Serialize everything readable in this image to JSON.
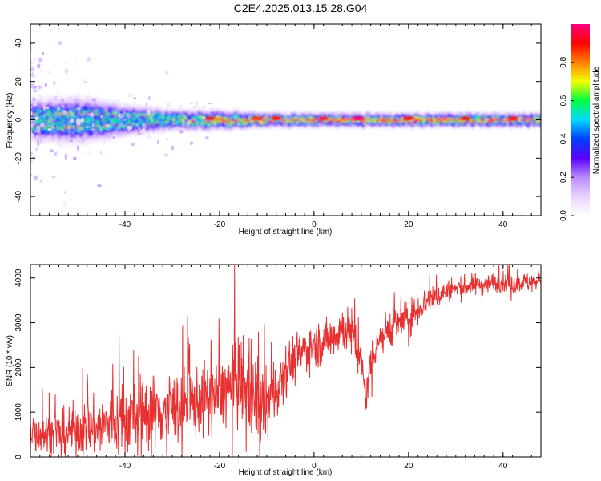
{
  "page": {
    "title": "C2E4.2025.013.15.28.G04"
  },
  "colors": {
    "snr_line": "#e83030",
    "frame": "#000000",
    "spectrogram_background": "#ffffff",
    "colormap": [
      "#ffffff",
      "#e9d2ff",
      "#b98cff",
      "#5a00ff",
      "#0040ff",
      "#00d8ff",
      "#00ff40",
      "#f0ff00",
      "#ff8000",
      "#ff0000",
      "#ff0080"
    ]
  },
  "chart_data": [
    {
      "type": "heatmap",
      "name": "spectrogram",
      "title": "",
      "xlabel": "Height of straight line (km)",
      "ylabel": "Frequency (Hz)",
      "xlim": [
        -60,
        48
      ],
      "ylim": [
        -50,
        50
      ],
      "x_ticks": [
        -40,
        -20,
        0,
        20,
        40
      ],
      "y_ticks": [
        -40,
        -20,
        0,
        20,
        40
      ],
      "grid": false,
      "colorbar": {
        "label": "Normalized spectral amplitude",
        "range": [
          0.0,
          1.0
        ],
        "ticks": [
          0.0,
          0.2,
          0.4,
          0.6,
          0.8
        ]
      },
      "band": {
        "center_frequency": 0,
        "description_x": [
          -58,
          -50,
          -40,
          -30,
          -20,
          -10,
          0,
          10,
          20,
          30,
          40,
          47
        ],
        "core_halfwidth_hz": [
          8,
          9,
          6,
          4,
          4,
          3,
          3,
          3,
          3,
          3,
          3,
          3
        ],
        "peak_amplitude": [
          0.5,
          0.45,
          0.45,
          0.55,
          0.75,
          0.85,
          0.9,
          1.0,
          0.9,
          0.85,
          0.85,
          0.85
        ]
      }
    },
    {
      "type": "line",
      "name": "snr",
      "title": "",
      "xlabel": "Height of straight line (km)",
      "ylabel": "SNR (10 * v/v)",
      "xlim": [
        -60,
        48
      ],
      "ylim": [
        0,
        4300
      ],
      "x_ticks": [
        -40,
        -20,
        0,
        20,
        40
      ],
      "y_ticks": [
        0,
        1000,
        2000,
        3000,
        4000
      ],
      "grid": false,
      "series": [
        {
          "x": [
            -60,
            -58,
            -56,
            -54,
            -52,
            -50,
            -48,
            -46,
            -44,
            -42,
            -40,
            -38,
            -36,
            -34,
            -32,
            -30,
            -28,
            -26,
            -24,
            -22,
            -20,
            -18,
            -16,
            -14,
            -12,
            -10,
            -8,
            -6,
            -4,
            -2,
            0,
            2,
            4,
            6,
            8,
            10,
            11,
            12,
            14,
            16,
            18,
            20,
            22,
            24,
            26,
            28,
            30,
            32,
            34,
            36,
            38,
            40,
            42,
            44,
            46,
            48
          ],
          "values": [
            600,
            550,
            500,
            520,
            560,
            600,
            620,
            650,
            700,
            750,
            820,
            900,
            950,
            1000,
            1050,
            1100,
            1150,
            1200,
            1250,
            1300,
            1400,
            1550,
            1700,
            1500,
            1200,
            1100,
            1600,
            2000,
            2200,
            2400,
            2500,
            2550,
            2700,
            2900,
            2750,
            2100,
            1300,
            2200,
            2700,
            2900,
            3000,
            3100,
            3300,
            3500,
            3600,
            3700,
            3750,
            3800,
            3850,
            3850,
            3900,
            3900,
            3850,
            3900,
            3900,
            3950
          ],
          "noise_amplitude": [
            450,
            400,
            400,
            400,
            450,
            500,
            500,
            550,
            600,
            650,
            700,
            700,
            700,
            700,
            700,
            650,
            650,
            650,
            650,
            650,
            650,
            700,
            800,
            900,
            800,
            700,
            600,
            500,
            450,
            450,
            400,
            400,
            400,
            450,
            450,
            400,
            300,
            350,
            350,
            350,
            350,
            300,
            300,
            250,
            250,
            200,
            200,
            200,
            200,
            200,
            180,
            180,
            180,
            180,
            180,
            180
          ]
        }
      ]
    }
  ]
}
